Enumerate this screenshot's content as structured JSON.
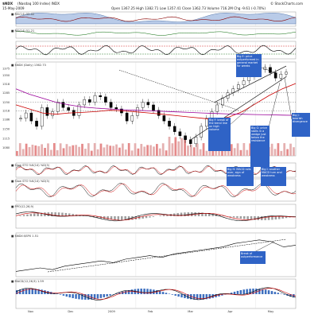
{
  "header": {
    "symbol": "$NDX",
    "subtitle": "(Nasdaq 100 Index) INDX",
    "date": "15-May-2009",
    "ohlc": "Open 1367.25 High 1382.71 Low 1357.41 Close 1362.73 Volume 716.2M Chg -9.61 (-0.70%)",
    "brand": "© StockCharts.com"
  },
  "panels": {
    "rsi_top": "■ RSI(14) 52.02",
    "rsi2": "■ RSI(14) 51.21",
    "price": "■ $NDX (Daily) 1362.73",
    "sto1": "■ Slow STO %K(14) %D(3)",
    "sto2": "■ Slow STO %K(14) %D(3)",
    "ppo": "■ PPO(12,26,9)",
    "ratio": "■ $NDX:$SPX 1.51",
    "macd": "■ MACD(12,26,9) 1.59"
  },
  "notes": [
    "Big E: price outperformed in general market for weeks",
    "Big F: break of the trend line on high volume",
    "Big G: price stalls in a wedge just below the resistance",
    "Big H: MACD rolls over, sign of weakness",
    "Big I: another MACD turn and weakness",
    "Big J: bearish divergence",
    "Break of outperformance"
  ],
  "colors": {
    "up": "#3366cc",
    "down": "#000000",
    "ma50": "#cc0000",
    "ma200": "#990099",
    "note": "#2f63c6"
  },
  "chart_data": {
    "type": "line",
    "x": [
      "Nov",
      "Dec",
      "2009",
      "Feb",
      "Mar",
      "Apr",
      "May"
    ],
    "price": {
      "name": "$NDX",
      "ylim": [
        1050,
        1400
      ],
      "ticks": [
        1080,
        1115,
        1150,
        1186,
        1218,
        1250,
        1285,
        1318,
        1350,
        1375
      ],
      "values": [
        1190,
        1210,
        1180,
        1160,
        1230,
        1200,
        1215,
        1250,
        1230,
        1220,
        1200,
        1240,
        1260,
        1250,
        1275,
        1270,
        1250,
        1230,
        1225,
        1210,
        1180,
        1200,
        1230,
        1250,
        1240,
        1220,
        1200,
        1180,
        1160,
        1140,
        1125,
        1110,
        1095,
        1120,
        1160,
        1190,
        1215,
        1240,
        1265,
        1285,
        1300,
        1315,
        1330,
        1345,
        1360,
        1372,
        1380,
        1360,
        1340,
        1355,
        1362
      ]
    },
    "ma": [
      {
        "name": "MA(50)",
        "values": [
          1240,
          1225,
          1210,
          1205,
          1210,
          1212,
          1215,
          1220,
          1218,
          1214,
          1210,
          1205,
          1200,
          1195,
          1190,
          1185,
          1195,
          1215,
          1245,
          1275,
          1300,
          1320
        ]
      },
      {
        "name": "MA(200)",
        "values": [
          1300,
          1280,
          1265,
          1250,
          1240,
          1232,
          1228,
          1225,
          1222,
          1220,
          1218,
          1216,
          1214,
          1212,
          1210,
          1208,
          1206,
          1205,
          1204,
          1203,
          1202,
          1201
        ]
      }
    ],
    "ratio": {
      "name": "$NDX:$SPX",
      "last": 1.51,
      "values": [
        1.36,
        1.37,
        1.38,
        1.37,
        1.39,
        1.4,
        1.41,
        1.42,
        1.41,
        1.43,
        1.44,
        1.45,
        1.44,
        1.46,
        1.47,
        1.48,
        1.49,
        1.5,
        1.52,
        1.53,
        1.54,
        1.53,
        1.5,
        1.51
      ]
    },
    "macd": {
      "name": "MACD(12,26,9)",
      "last": 1.59
    }
  }
}
